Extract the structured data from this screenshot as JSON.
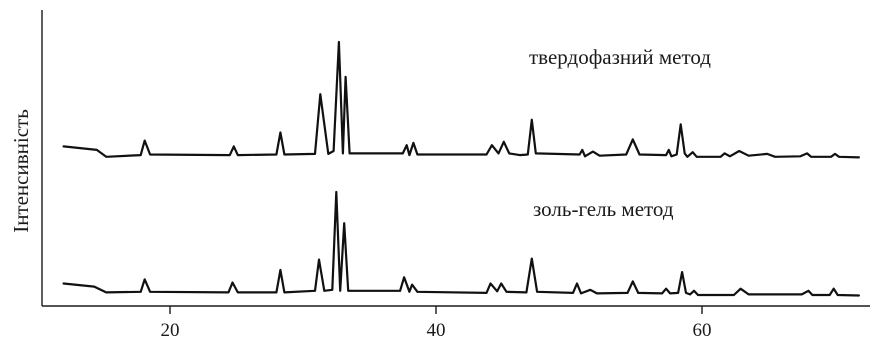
{
  "chart_data": {
    "type": "line",
    "ylabel": "Інтенсивність",
    "xlabel": "",
    "xlim": [
      11,
      72
    ],
    "x_ticks": [
      20,
      40,
      60
    ],
    "x_tick_labels": [
      "20",
      "40",
      "60"
    ],
    "y_ticks_shown": false,
    "grid": false,
    "legend": "none",
    "series": [
      {
        "name": "твердофазний метод",
        "label": "твердофазний метод",
        "values_rel": "relative intensity (0-100)",
        "points": [
          [
            12.0,
            10.0
          ],
          [
            14.5,
            7.0
          ],
          [
            15.2,
            1.0
          ],
          [
            17.8,
            2.5
          ],
          [
            18.1,
            15.0
          ],
          [
            18.5,
            3.0
          ],
          [
            24.5,
            2.5
          ],
          [
            24.8,
            10.0
          ],
          [
            25.1,
            2.5
          ],
          [
            28.0,
            3.0
          ],
          [
            28.3,
            22.0
          ],
          [
            28.6,
            3.0
          ],
          [
            30.9,
            3.5
          ],
          [
            31.3,
            55.0
          ],
          [
            31.9,
            3.5
          ],
          [
            32.3,
            6.0
          ],
          [
            32.7,
            100.0
          ],
          [
            33.0,
            4.0
          ],
          [
            33.2,
            70.0
          ],
          [
            33.5,
            4.0
          ],
          [
            37.5,
            4.0
          ],
          [
            37.8,
            11.0
          ],
          [
            38.0,
            2.5
          ],
          [
            38.3,
            13.0
          ],
          [
            38.6,
            3.0
          ],
          [
            43.8,
            3.0
          ],
          [
            44.2,
            11.0
          ],
          [
            44.7,
            4.0
          ],
          [
            45.1,
            14.0
          ],
          [
            45.5,
            4.0
          ],
          [
            46.3,
            2.5
          ],
          [
            46.9,
            3.0
          ],
          [
            47.2,
            33.0
          ],
          [
            47.5,
            4.0
          ],
          [
            50.8,
            3.0
          ],
          [
            51.0,
            7.0
          ],
          [
            51.2,
            1.5
          ],
          [
            51.8,
            5.5
          ],
          [
            52.3,
            2.0
          ],
          [
            54.3,
            3.0
          ],
          [
            54.8,
            16.0
          ],
          [
            55.3,
            3.0
          ],
          [
            57.3,
            2.5
          ],
          [
            57.5,
            7.0
          ],
          [
            57.7,
            1.5
          ],
          [
            58.1,
            3.0
          ],
          [
            58.4,
            29.0
          ],
          [
            58.7,
            4.0
          ],
          [
            58.9,
            1.0
          ],
          [
            59.3,
            5.0
          ],
          [
            59.6,
            1.0
          ],
          [
            61.4,
            1.0
          ],
          [
            61.7,
            4.0
          ],
          [
            62.1,
            1.5
          ],
          [
            62.8,
            6.0
          ],
          [
            63.5,
            2.0
          ],
          [
            64.9,
            3.5
          ],
          [
            65.5,
            1.0
          ],
          [
            67.4,
            1.5
          ],
          [
            67.9,
            4.0
          ],
          [
            68.2,
            1.0
          ],
          [
            69.7,
            1.0
          ],
          [
            70.0,
            3.5
          ],
          [
            70.3,
            1.0
          ],
          [
            71.8,
            0.5
          ]
        ]
      },
      {
        "name": "золь-гель метод",
        "label": "золь-гель метод",
        "points": [
          [
            12.0,
            12.0
          ],
          [
            14.3,
            9.0
          ],
          [
            15.2,
            3.5
          ],
          [
            17.8,
            4.0
          ],
          [
            18.1,
            16.0
          ],
          [
            18.5,
            4.0
          ],
          [
            24.4,
            3.5
          ],
          [
            24.7,
            13.0
          ],
          [
            25.1,
            3.5
          ],
          [
            28.0,
            3.5
          ],
          [
            28.3,
            25.0
          ],
          [
            28.6,
            3.5
          ],
          [
            30.9,
            5.0
          ],
          [
            31.2,
            35.0
          ],
          [
            31.6,
            5.0
          ],
          [
            32.2,
            6.0
          ],
          [
            32.5,
            100.0
          ],
          [
            32.8,
            5.0
          ],
          [
            33.1,
            70.0
          ],
          [
            33.4,
            5.0
          ],
          [
            37.3,
            5.0
          ],
          [
            37.6,
            18.0
          ],
          [
            38.0,
            4.0
          ],
          [
            38.2,
            11.0
          ],
          [
            38.6,
            4.0
          ],
          [
            43.8,
            3.0
          ],
          [
            44.1,
            12.0
          ],
          [
            44.6,
            4.5
          ],
          [
            44.9,
            12.0
          ],
          [
            45.3,
            4.0
          ],
          [
            46.8,
            3.5
          ],
          [
            47.2,
            36.0
          ],
          [
            47.6,
            4.0
          ],
          [
            50.3,
            3.0
          ],
          [
            50.6,
            12.0
          ],
          [
            50.9,
            2.5
          ],
          [
            51.6,
            6.0
          ],
          [
            52.1,
            2.5
          ],
          [
            54.4,
            3.0
          ],
          [
            54.8,
            14.0
          ],
          [
            55.2,
            3.0
          ],
          [
            57.0,
            2.5
          ],
          [
            57.3,
            7.0
          ],
          [
            57.6,
            2.5
          ],
          [
            58.2,
            3.0
          ],
          [
            58.5,
            23.0
          ],
          [
            58.8,
            3.0
          ],
          [
            59.1,
            1.5
          ],
          [
            59.4,
            5.0
          ],
          [
            59.7,
            1.0
          ],
          [
            62.4,
            1.0
          ],
          [
            62.9,
            7.0
          ],
          [
            63.5,
            1.5
          ],
          [
            67.5,
            1.5
          ],
          [
            68.0,
            5.0
          ],
          [
            68.3,
            1.0
          ],
          [
            69.6,
            1.0
          ],
          [
            69.9,
            7.0
          ],
          [
            70.2,
            1.0
          ],
          [
            71.8,
            0.5
          ]
        ]
      }
    ]
  }
}
